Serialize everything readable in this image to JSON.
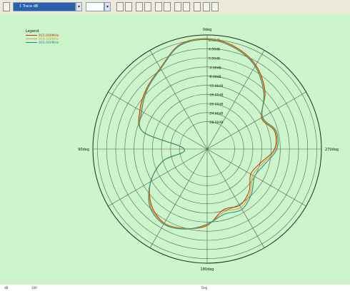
{
  "toolbar": {
    "mode_select_value": "1 Trace dB",
    "icons": [
      "cursor-icon",
      "zoom-icon",
      "marker-icon",
      "grid-icon",
      "copy-icon",
      "polar-icon",
      "trace-icon",
      "scale-icon",
      "legend-icon",
      "export-icon",
      "print-icon"
    ]
  },
  "status": {
    "left_value": "dB",
    "mid_value": "100",
    "center_label": "Deg"
  },
  "chart_data": {
    "type": "polar",
    "title": "",
    "angle_labels": [
      "0deg",
      "90deg",
      "180deg",
      "270deg"
    ],
    "angle_direction": "counter-clockwise",
    "zero_position": "top",
    "radial_unit": "dB",
    "radial_range": [
      -40,
      10
    ],
    "radial_ticks": [
      {
        "value": 8,
        "label": "8.00dB"
      },
      {
        "value": 4,
        "label": "4.00dB"
      },
      {
        "value": 0,
        "label": "0.00dB"
      },
      {
        "value": -4,
        "label": "-4.00dB"
      },
      {
        "value": -8,
        "label": "-8.00dB"
      },
      {
        "value": -12,
        "label": "-12.00dB"
      },
      {
        "value": -16,
        "label": "-16.00dB"
      },
      {
        "value": -20,
        "label": "-20.00dB"
      },
      {
        "value": -24,
        "label": "-24.00dB"
      },
      {
        "value": -28,
        "label": "-28.00dB"
      }
    ],
    "grid": true,
    "legend": {
      "title": "Legend",
      "position": "top-left"
    },
    "angles_deg": [
      0,
      15,
      30,
      45,
      60,
      75,
      90,
      105,
      120,
      135,
      150,
      165,
      180,
      195,
      210,
      225,
      240,
      255,
      270,
      285,
      300,
      315,
      330,
      345
    ],
    "series": [
      {
        "name": "915.000MHz",
        "color": "#c03000",
        "values": [
          8.4,
          7.2,
          1.0,
          -2.5,
          -6.0,
          -11.0,
          -30.0,
          -20.0,
          -11.5,
          -5.5,
          -2.5,
          -4.0,
          -6.5,
          -12.5,
          -11.5,
          -14.0,
          -18.0,
          -16.0,
          -10.5,
          -9.5,
          -12.5,
          -4.2,
          2.5,
          6.5
        ]
      },
      {
        "name": "920.000MHz",
        "color": "#e0a020",
        "values": [
          8.2,
          7.0,
          0.8,
          -2.8,
          -6.5,
          -11.0,
          -30.0,
          -20.0,
          -11.5,
          -5.0,
          -2.3,
          -3.9,
          -6.8,
          -11.5,
          -10.5,
          -13.2,
          -17.0,
          -15.0,
          -10.0,
          -9.2,
          -12.2,
          -4.6,
          2.2,
          6.2
        ]
      },
      {
        "name": "925.000MHz",
        "color": "#208c8c",
        "values": [
          8.0,
          6.8,
          0.6,
          -3.0,
          -7.0,
          -11.0,
          -30.0,
          -20.0,
          -11.5,
          -4.5,
          -2.0,
          -3.7,
          -7.1,
          -10.5,
          -9.5,
          -12.5,
          -16.0,
          -14.0,
          -9.5,
          -8.8,
          -12.0,
          -5.0,
          1.9,
          5.9
        ]
      }
    ]
  }
}
